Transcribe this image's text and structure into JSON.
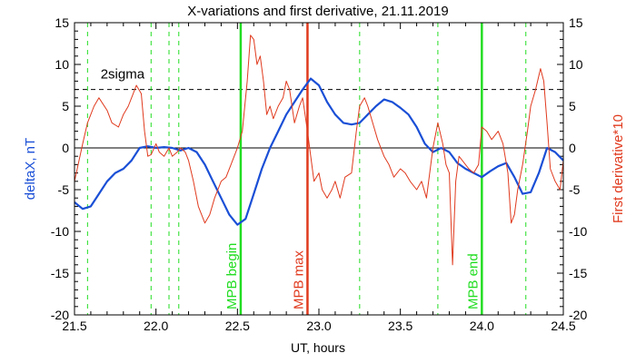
{
  "chart_data": {
    "type": "line",
    "title": "X-variations and first derivative, 21.11.2019",
    "xlabel": "UT, hours",
    "ylabel_left": "deltaX, nT",
    "ylabel_right": "First derivative*10",
    "xlim": [
      21.5,
      24.5
    ],
    "ylim": [
      -20,
      15
    ],
    "x_ticks": [
      "21.5",
      "22.0",
      "22.5",
      "23.0",
      "23.5",
      "24.0",
      "24.5"
    ],
    "y_ticks": [
      "-20",
      "-15",
      "-10",
      "-5",
      "0",
      "5",
      "10",
      "15"
    ],
    "sigma_label": "2sigma",
    "sigma_level": 7,
    "colors": {
      "deltaX": "#1a4fd6",
      "derivative": "#e03a1e",
      "markers": "#22dd22",
      "max": "#e03a1e",
      "sigma": "#000000"
    },
    "series": [
      {
        "key": "deltaX",
        "x": [
          21.5,
          21.55,
          21.6,
          21.65,
          21.7,
          21.75,
          21.8,
          21.85,
          21.9,
          21.95,
          22.0,
          22.05,
          22.1,
          22.15,
          22.2,
          22.25,
          22.3,
          22.35,
          22.4,
          22.45,
          22.5,
          22.55,
          22.6,
          22.65,
          22.7,
          22.75,
          22.8,
          22.85,
          22.9,
          22.95,
          23.0,
          23.05,
          23.1,
          23.15,
          23.2,
          23.25,
          23.3,
          23.35,
          23.4,
          23.45,
          23.5,
          23.55,
          23.6,
          23.65,
          23.7,
          23.75,
          23.8,
          23.85,
          23.9,
          23.95,
          24.0,
          24.05,
          24.1,
          24.15,
          24.2,
          24.25,
          24.3,
          24.35,
          24.4,
          24.45,
          24.5
        ],
        "y": [
          -6.5,
          -7.3,
          -7.0,
          -5.5,
          -4.0,
          -3.0,
          -2.5,
          -1.5,
          0.0,
          0.2,
          0.0,
          0.1,
          0.0,
          -0.3,
          0.0,
          -0.5,
          -2.0,
          -4.0,
          -6.0,
          -8.0,
          -9.2,
          -8.5,
          -5.5,
          -2.5,
          0.0,
          2.0,
          4.0,
          5.5,
          7.0,
          8.3,
          7.5,
          5.5,
          4.0,
          3.0,
          2.8,
          3.0,
          4.0,
          5.0,
          5.8,
          5.5,
          4.8,
          4.0,
          2.5,
          0.5,
          -0.5,
          0.0,
          -0.5,
          -1.8,
          -2.5,
          -3.0,
          -3.5,
          -2.8,
          -2.2,
          -1.8,
          -3.5,
          -5.5,
          -5.3,
          -3.0,
          0.0,
          -0.5,
          -1.5
        ]
      },
      {
        "key": "derivative",
        "x": [
          21.5,
          21.55,
          21.58,
          21.62,
          21.65,
          21.7,
          21.73,
          21.77,
          21.8,
          21.83,
          21.86,
          21.88,
          21.91,
          21.93,
          21.95,
          21.97,
          22.0,
          22.02,
          22.05,
          22.08,
          22.1,
          22.13,
          22.15,
          22.18,
          22.2,
          22.23,
          22.26,
          22.3,
          22.33,
          22.36,
          22.4,
          22.43,
          22.46,
          22.5,
          22.53,
          22.56,
          22.58,
          22.6,
          22.62,
          22.64,
          22.66,
          22.68,
          22.7,
          22.72,
          22.75,
          22.78,
          22.8,
          22.82,
          22.85,
          22.88,
          22.9,
          22.93,
          22.95,
          22.97,
          23.0,
          23.02,
          23.05,
          23.08,
          23.1,
          23.13,
          23.16,
          23.2,
          23.23,
          23.25,
          23.28,
          23.3,
          23.33,
          23.36,
          23.4,
          23.43,
          23.46,
          23.5,
          23.53,
          23.56,
          23.6,
          23.63,
          23.66,
          23.7,
          23.73,
          23.76,
          23.78,
          23.8,
          23.82,
          23.84,
          23.86,
          23.88,
          23.9,
          23.92,
          23.95,
          23.98,
          24.0,
          24.03,
          24.06,
          24.1,
          24.13,
          24.16,
          24.18,
          24.2,
          24.22,
          24.25,
          24.28,
          24.3,
          24.33,
          24.36,
          24.38,
          24.4,
          24.42,
          24.45,
          24.48,
          24.5
        ],
        "y": [
          -4.0,
          0.5,
          3.0,
          5.0,
          6.0,
          4.5,
          3.0,
          2.5,
          4.0,
          5.0,
          6.5,
          7.5,
          6.5,
          2.0,
          -1.0,
          -0.8,
          0.5,
          -0.5,
          -1.0,
          0.0,
          -1.0,
          -0.5,
          0.0,
          -0.5,
          -1.5,
          -4.0,
          -7.0,
          -9.0,
          -8.0,
          -6.0,
          -4.0,
          -3.5,
          -2.0,
          0.0,
          2.0,
          8.0,
          13.5,
          13.0,
          10.0,
          11.0,
          8.0,
          4.0,
          5.0,
          3.5,
          5.0,
          6.0,
          8.0,
          7.0,
          3.0,
          5.0,
          6.0,
          2.0,
          -1.0,
          -4.0,
          -3.0,
          -5.0,
          -6.0,
          -5.0,
          -4.0,
          -6.0,
          -3.5,
          -3.0,
          2.0,
          5.0,
          6.0,
          5.0,
          3.0,
          1.0,
          -1.0,
          -2.0,
          -3.5,
          -2.5,
          -3.0,
          -4.0,
          -5.0,
          -4.0,
          -6.0,
          0.0,
          3.0,
          0.5,
          -2.0,
          -3.0,
          -14.0,
          -4.0,
          -1.0,
          -1.5,
          -2.0,
          -2.5,
          -3.0,
          -2.0,
          2.5,
          2.0,
          1.0,
          2.0,
          0.5,
          -3.0,
          -9.0,
          -8.0,
          -5.0,
          -2.0,
          2.0,
          5.0,
          7.0,
          9.5,
          8.0,
          3.0,
          -2.5,
          -4.0,
          -5.0,
          -1.5
        ]
      }
    ],
    "zero_line": 0,
    "vertical_lines": [
      {
        "x": 21.58,
        "style": "dashed",
        "kind": "markers",
        "label": ""
      },
      {
        "x": 21.97,
        "style": "dashed",
        "kind": "markers",
        "label": ""
      },
      {
        "x": 22.08,
        "style": "dashed",
        "kind": "markers",
        "label": ""
      },
      {
        "x": 22.14,
        "style": "dashed",
        "kind": "markers",
        "label": ""
      },
      {
        "x": 22.52,
        "style": "solid",
        "kind": "markers",
        "label": "MPB begin"
      },
      {
        "x": 22.93,
        "style": "solid",
        "kind": "max",
        "label": "MPB max"
      },
      {
        "x": 23.25,
        "style": "dashed",
        "kind": "markers",
        "label": ""
      },
      {
        "x": 23.73,
        "style": "dashed",
        "kind": "markers",
        "label": ""
      },
      {
        "x": 24.0,
        "style": "solid",
        "kind": "markers",
        "label": "MPB end"
      },
      {
        "x": 24.27,
        "style": "dashed",
        "kind": "markers",
        "label": ""
      }
    ]
  }
}
